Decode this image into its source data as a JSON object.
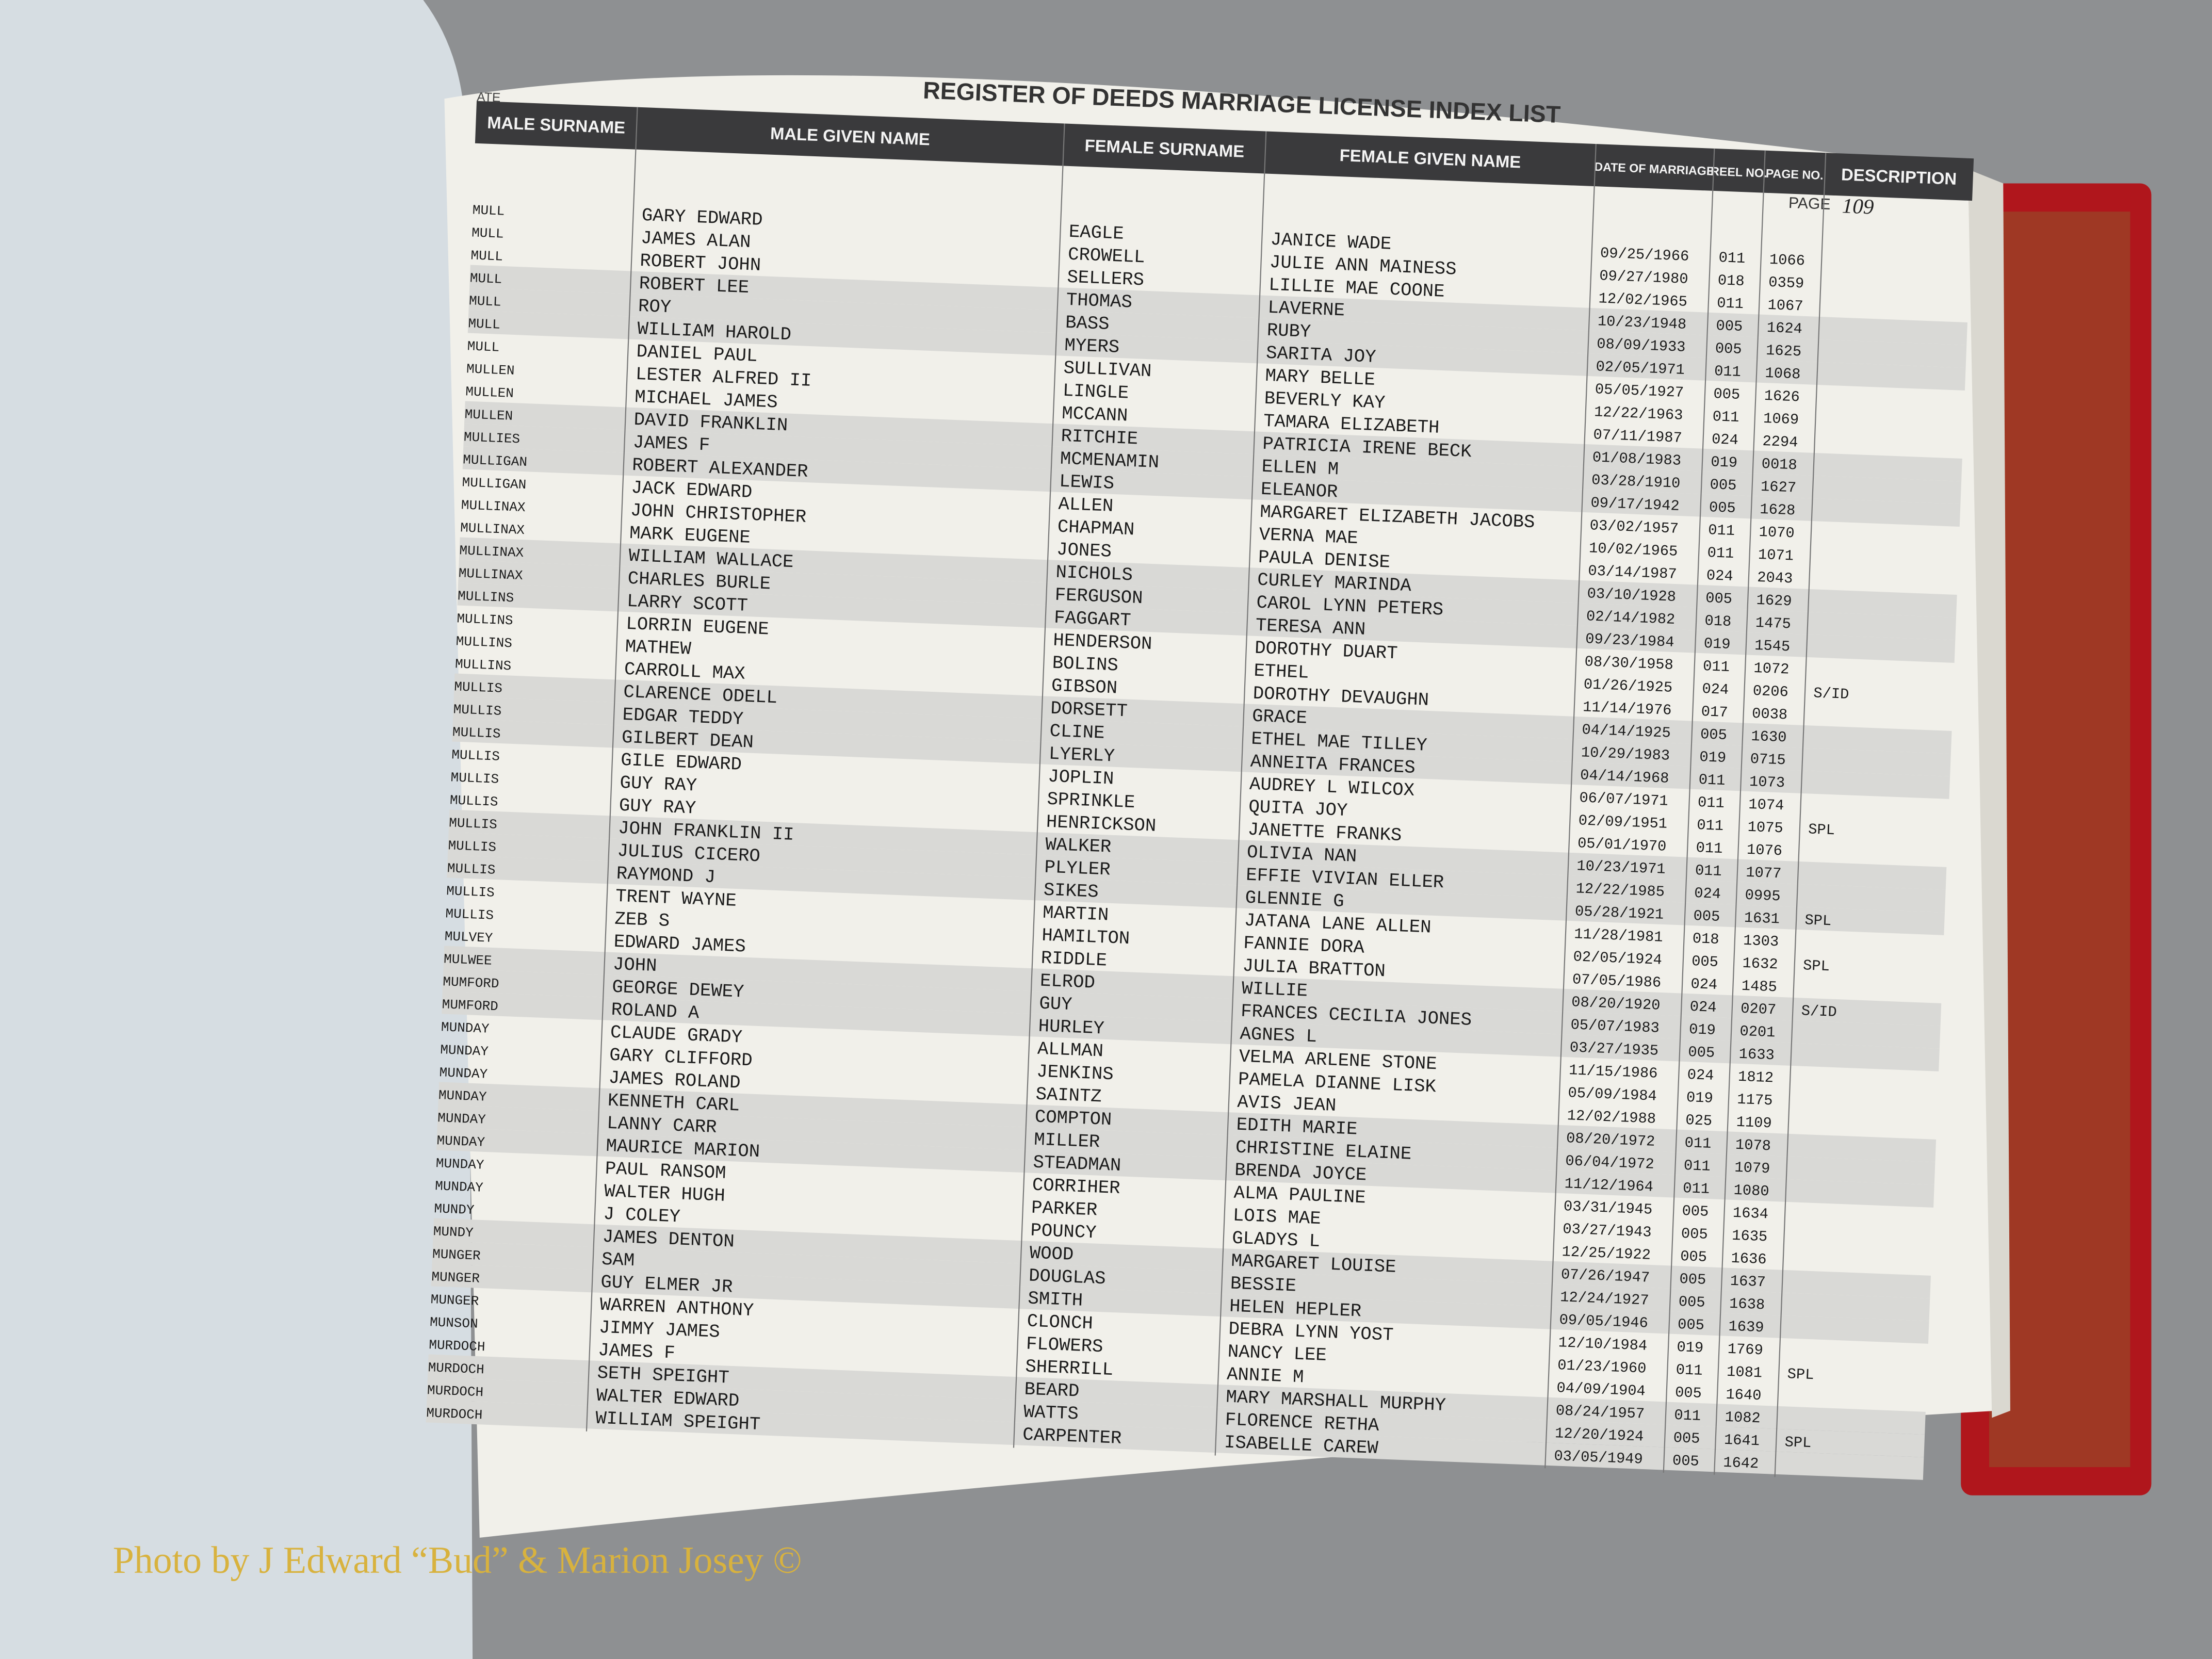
{
  "header": {
    "title": "REGISTER OF DEEDS MARRIAGE LICENSE INDEX LIST",
    "date_label": "ATE",
    "page_label": "PAGE",
    "page_number": "109"
  },
  "table": {
    "columns": [
      "MALE SURNAME",
      "MALE GIVEN NAME",
      "FEMALE SURNAME",
      "FEMALE GIVEN NAME",
      "DATE OF MARRIAGE",
      "REEL NO.",
      "PAGE NO.",
      "DESCRIPTION"
    ],
    "rows": [
      [
        "MULL",
        "GARY EDWARD",
        "EAGLE",
        "JANICE WADE",
        "09/25/1966",
        "011",
        "1066"
      ],
      [
        "MULL",
        "JAMES ALAN",
        "CROWELL",
        "JULIE ANN MAINESS",
        "09/27/1980",
        "018",
        "0359"
      ],
      [
        "MULL",
        "ROBERT JOHN",
        "SELLERS",
        "LILLIE MAE COONE",
        "12/02/1965",
        "011",
        "1067"
      ],
      [
        "MULL",
        "ROBERT LEE",
        "THOMAS",
        "LAVERNE",
        "10/23/1948",
        "005",
        "1624"
      ],
      [
        "MULL",
        "ROY",
        "BASS",
        "RUBY",
        "08/09/1933",
        "005",
        "1625"
      ],
      [
        "MULL",
        "WILLIAM HAROLD",
        "MYERS",
        "SARITA JOY",
        "02/05/1971",
        "011",
        "1068"
      ],
      [
        "MULL",
        "DANIEL PAUL",
        "SULLIVAN",
        "MARY BELLE",
        "05/05/1927",
        "005",
        "1626"
      ],
      [
        "MULLEN",
        "LESTER ALFRED II",
        "LINGLE",
        "BEVERLY KAY",
        "12/22/1963",
        "011",
        "1069"
      ],
      [
        "MULLEN",
        "MICHAEL JAMES",
        "MCCANN",
        "TAMARA ELIZABETH",
        "07/11/1987",
        "024",
        "2294"
      ],
      [
        "MULLEN",
        "DAVID FRANKLIN",
        "RITCHIE",
        "PATRICIA IRENE BECK",
        "01/08/1983",
        "019",
        "0018"
      ],
      [
        "MULLIES",
        "JAMES F",
        "MCMENAMIN",
        "ELLEN M",
        "03/28/1910",
        "005",
        "1627"
      ],
      [
        "MULLIGAN",
        "ROBERT ALEXANDER",
        "LEWIS",
        "ELEANOR",
        "09/17/1942",
        "005",
        "1628"
      ],
      [
        "MULLIGAN",
        "JACK EDWARD",
        "ALLEN",
        "MARGARET ELIZABETH JACOBS",
        "03/02/1957",
        "011",
        "1070"
      ],
      [
        "MULLINAX",
        "JOHN CHRISTOPHER",
        "CHAPMAN",
        "VERNA MAE",
        "10/02/1965",
        "011",
        "1071"
      ],
      [
        "MULLINAX",
        "MARK EUGENE",
        "JONES",
        "PAULA DENISE",
        "03/14/1987",
        "024",
        "2043"
      ],
      [
        "MULLINAX",
        "WILLIAM WALLACE",
        "NICHOLS",
        "CURLEY MARINDA",
        "03/10/1928",
        "005",
        "1629"
      ],
      [
        "MULLINAX",
        "CHARLES BURLE",
        "FERGUSON",
        "CAROL LYNN PETERS",
        "02/14/1982",
        "018",
        "1475"
      ],
      [
        "MULLINS",
        "LARRY SCOTT",
        "FAGGART",
        "TERESA ANN",
        "09/23/1984",
        "019",
        "1545"
      ],
      [
        "MULLINS",
        "LORRIN EUGENE",
        "HENDERSON",
        "DOROTHY DUART",
        "08/30/1958",
        "011",
        "1072"
      ],
      [
        "MULLINS",
        "MATHEW",
        "BOLINS",
        "ETHEL",
        "01/26/1925",
        "024",
        "0206",
        "S/ID"
      ],
      [
        "MULLINS",
        "CARROLL MAX",
        "GIBSON",
        "DOROTHY DEVAUGHN",
        "11/14/1976",
        "017",
        "0038"
      ],
      [
        "MULLIS",
        "CLARENCE ODELL",
        "DORSETT",
        "GRACE",
        "04/14/1925",
        "005",
        "1630"
      ],
      [
        "MULLIS",
        "EDGAR TEDDY",
        "CLINE",
        "ETHEL MAE TILLEY",
        "10/29/1983",
        "019",
        "0715"
      ],
      [
        "MULLIS",
        "GILBERT DEAN",
        "LYERLY",
        "ANNEITA FRANCES",
        "04/14/1968",
        "011",
        "1073"
      ],
      [
        "MULLIS",
        "GILE EDWARD",
        "JOPLIN",
        "AUDREY L WILCOX",
        "06/07/1971",
        "011",
        "1074"
      ],
      [
        "MULLIS",
        "GUY RAY",
        "SPRINKLE",
        "QUITA JOY",
        "02/09/1951",
        "011",
        "1075",
        "SPL"
      ],
      [
        "MULLIS",
        "GUY RAY",
        "HENRICKSON",
        "JANETTE FRANKS",
        "05/01/1970",
        "011",
        "1076"
      ],
      [
        "MULLIS",
        "JOHN FRANKLIN II",
        "WALKER",
        "OLIVIA NAN",
        "10/23/1971",
        "011",
        "1077"
      ],
      [
        "MULLIS",
        "JULIUS CICERO",
        "PLYLER",
        "EFFIE VIVIAN ELLER",
        "12/22/1985",
        "024",
        "0995"
      ],
      [
        "MULLIS",
        "RAYMOND J",
        "SIKES",
        "GLENNIE G",
        "05/28/1921",
        "005",
        "1631",
        "SPL"
      ],
      [
        "MULLIS",
        "TRENT WAYNE",
        "MARTIN",
        "JATANA LANE ALLEN",
        "11/28/1981",
        "018",
        "1303"
      ],
      [
        "MULLIS",
        "ZEB S",
        "HAMILTON",
        "FANNIE DORA",
        "02/05/1924",
        "005",
        "1632",
        "SPL"
      ],
      [
        "MULVEY",
        "EDWARD JAMES",
        "RIDDLE",
        "JULIA BRATTON",
        "07/05/1986",
        "024",
        "1485"
      ],
      [
        "MULWEE",
        "JOHN",
        "ELROD",
        "WILLIE",
        "08/20/1920",
        "024",
        "0207",
        "S/ID"
      ],
      [
        "MUMFORD",
        "GEORGE DEWEY",
        "GUY",
        "FRANCES CECILIA JONES",
        "05/07/1983",
        "019",
        "0201"
      ],
      [
        "MUMFORD",
        "ROLAND A",
        "HURLEY",
        "AGNES L",
        "03/27/1935",
        "005",
        "1633"
      ],
      [
        "MUNDAY",
        "CLAUDE GRADY",
        "ALLMAN",
        "VELMA ARLENE STONE",
        "11/15/1986",
        "024",
        "1812"
      ],
      [
        "MUNDAY",
        "GARY CLIFFORD",
        "JENKINS",
        "PAMELA DIANNE LISK",
        "05/09/1984",
        "019",
        "1175"
      ],
      [
        "MUNDAY",
        "JAMES ROLAND",
        "SAINTZ",
        "AVIS JEAN",
        "12/02/1988",
        "025",
        "1109"
      ],
      [
        "MUNDAY",
        "KENNETH CARL",
        "COMPTON",
        "EDITH MARIE",
        "08/20/1972",
        "011",
        "1078"
      ],
      [
        "MUNDAY",
        "LANNY CARR",
        "MILLER",
        "CHRISTINE ELAINE",
        "06/04/1972",
        "011",
        "1079"
      ],
      [
        "MUNDAY",
        "MAURICE MARION",
        "STEADMAN",
        "BRENDA JOYCE",
        "11/12/1964",
        "011",
        "1080"
      ],
      [
        "MUNDAY",
        "PAUL RANSOM",
        "CORRIHER",
        "ALMA PAULINE",
        "03/31/1945",
        "005",
        "1634"
      ],
      [
        "MUNDAY",
        "WALTER HUGH",
        "PARKER",
        "LOIS MAE",
        "03/27/1943",
        "005",
        "1635"
      ],
      [
        "MUNDY",
        "J COLEY",
        "POUNCY",
        "GLADYS L",
        "12/25/1922",
        "005",
        "1636"
      ],
      [
        "MUNDY",
        "JAMES DENTON",
        "WOOD",
        "MARGARET LOUISE",
        "07/26/1947",
        "005",
        "1637"
      ],
      [
        "MUNGER",
        "SAM",
        "DOUGLAS",
        "BESSIE",
        "12/24/1927",
        "005",
        "1638"
      ],
      [
        "MUNGER",
        "GUY ELMER JR",
        "SMITH",
        "HELEN HEPLER",
        "09/05/1946",
        "005",
        "1639"
      ],
      [
        "MUNGER",
        "WARREN ANTHONY",
        "CLONCH",
        "DEBRA LYNN YOST",
        "12/10/1984",
        "019",
        "1769"
      ],
      [
        "MUNSON",
        "JIMMY JAMES",
        "FLOWERS",
        "NANCY LEE",
        "01/23/1960",
        "011",
        "1081",
        "SPL"
      ],
      [
        "MURDOCH",
        "JAMES F",
        "SHERRILL",
        "ANNIE M",
        "04/09/1904",
        "005",
        "1640"
      ],
      [
        "MURDOCH",
        "SETH SPEIGHT",
        "BEARD",
        "MARY MARSHALL MURPHY",
        "08/24/1957",
        "011",
        "1082"
      ],
      [
        "MURDOCH",
        "WALTER EDWARD",
        "WATTS",
        "FLORENCE RETHA",
        "12/20/1924",
        "005",
        "1641",
        "SPL"
      ],
      [
        "MURDOCH",
        "WILLIAM SPEIGHT",
        "CARPENTER",
        "ISABELLE CAREW",
        "03/05/1949",
        "005",
        "1642"
      ]
    ]
  },
  "watermark": "Photo by J Edward “Bud” & Marion Josey ©"
}
